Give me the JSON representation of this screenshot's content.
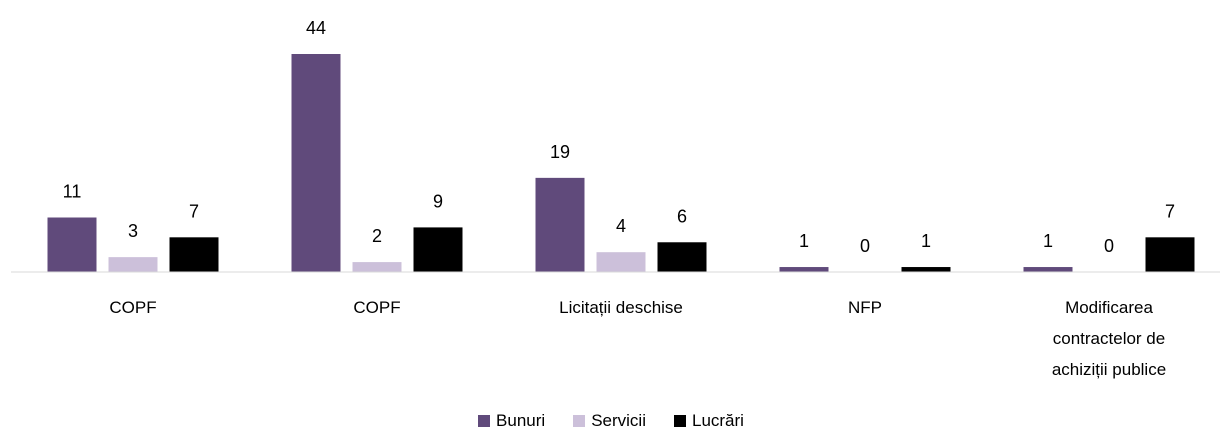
{
  "chart_data": {
    "type": "bar",
    "categories": [
      "COPF",
      "COPF",
      "Licitații deschise",
      "NFP",
      "Modificarea contractelor de achiziții publice"
    ],
    "series": [
      {
        "name": "Bunuri",
        "color": "#604a7b",
        "values": [
          11,
          44,
          19,
          1,
          1
        ]
      },
      {
        "name": "Servicii",
        "color": "#ccc0da",
        "values": [
          3,
          2,
          4,
          0,
          0
        ]
      },
      {
        "name": "Lucrări",
        "color": "#000000",
        "values": [
          7,
          9,
          6,
          1,
          7
        ]
      }
    ],
    "ylim": [
      0,
      44
    ],
    "legend": "bottom"
  }
}
